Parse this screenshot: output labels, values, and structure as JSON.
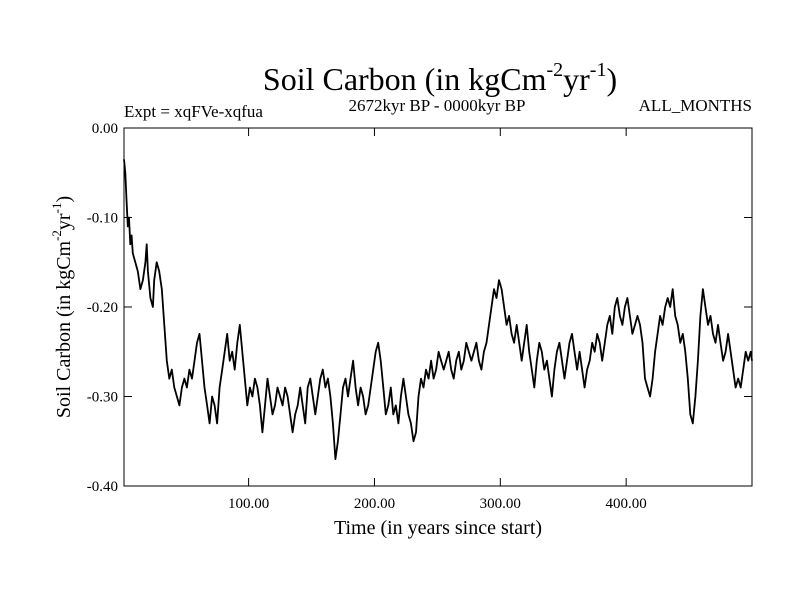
{
  "chart_data": {
    "type": "line",
    "title_main": "Soil Carbon (in kgCm",
    "title_sup1": "-2",
    "title_mid": "yr",
    "title_sup2": "-1",
    "title_end": ")",
    "subtitle_left": "Expt = xqFVe-xqfua",
    "subtitle_center": "2672kyr BP - 0000kyr BP",
    "subtitle_right": "ALL_MONTHS",
    "xlabel": "Time (in years since start)",
    "ylabel_main": "Soil Carbon (in kgCm",
    "ylabel_sup1": "-2",
    "ylabel_mid": "yr",
    "ylabel_sup2": "-1",
    "ylabel_end": ")",
    "xlim": [
      1,
      500
    ],
    "ylim": [
      -0.4,
      0.0
    ],
    "xticks": [
      {
        "value": 100,
        "label": "100.00"
      },
      {
        "value": 200,
        "label": "200.00"
      },
      {
        "value": 300,
        "label": "300.00"
      },
      {
        "value": 400,
        "label": "400.00"
      }
    ],
    "yticks": [
      {
        "value": 0.0,
        "label": "0.00"
      },
      {
        "value": -0.1,
        "label": "-0.10"
      },
      {
        "value": -0.2,
        "label": "-0.20"
      },
      {
        "value": -0.3,
        "label": "-0.30"
      },
      {
        "value": -0.4,
        "label": "-0.40"
      }
    ],
    "series": [
      {
        "name": "soil_carbon",
        "color": "#000000",
        "points": [
          [
            1,
            -0.035
          ],
          [
            2,
            -0.05
          ],
          [
            3,
            -0.08
          ],
          [
            4,
            -0.11
          ],
          [
            5,
            -0.1
          ],
          [
            6,
            -0.13
          ],
          [
            7,
            -0.12
          ],
          [
            8,
            -0.14
          ],
          [
            10,
            -0.15
          ],
          [
            12,
            -0.16
          ],
          [
            14,
            -0.18
          ],
          [
            16,
            -0.17
          ],
          [
            18,
            -0.15
          ],
          [
            19,
            -0.13
          ],
          [
            20,
            -0.16
          ],
          [
            22,
            -0.19
          ],
          [
            24,
            -0.2
          ],
          [
            25,
            -0.17
          ],
          [
            27,
            -0.15
          ],
          [
            29,
            -0.16
          ],
          [
            31,
            -0.18
          ],
          [
            33,
            -0.22
          ],
          [
            35,
            -0.26
          ],
          [
            37,
            -0.28
          ],
          [
            39,
            -0.27
          ],
          [
            41,
            -0.29
          ],
          [
            43,
            -0.3
          ],
          [
            45,
            -0.31
          ],
          [
            47,
            -0.29
          ],
          [
            49,
            -0.28
          ],
          [
            51,
            -0.29
          ],
          [
            53,
            -0.27
          ],
          [
            55,
            -0.28
          ],
          [
            57,
            -0.26
          ],
          [
            59,
            -0.24
          ],
          [
            61,
            -0.23
          ],
          [
            63,
            -0.26
          ],
          [
            65,
            -0.29
          ],
          [
            67,
            -0.31
          ],
          [
            69,
            -0.33
          ],
          [
            71,
            -0.3
          ],
          [
            73,
            -0.31
          ],
          [
            75,
            -0.33
          ],
          [
            77,
            -0.29
          ],
          [
            79,
            -0.27
          ],
          [
            81,
            -0.25
          ],
          [
            83,
            -0.23
          ],
          [
            85,
            -0.26
          ],
          [
            87,
            -0.25
          ],
          [
            89,
            -0.27
          ],
          [
            91,
            -0.24
          ],
          [
            93,
            -0.22
          ],
          [
            95,
            -0.25
          ],
          [
            97,
            -0.28
          ],
          [
            99,
            -0.31
          ],
          [
            101,
            -0.29
          ],
          [
            103,
            -0.3
          ],
          [
            105,
            -0.28
          ],
          [
            107,
            -0.29
          ],
          [
            109,
            -0.31
          ],
          [
            111,
            -0.34
          ],
          [
            113,
            -0.31
          ],
          [
            115,
            -0.28
          ],
          [
            117,
            -0.3
          ],
          [
            119,
            -0.32
          ],
          [
            121,
            -0.31
          ],
          [
            123,
            -0.29
          ],
          [
            125,
            -0.3
          ],
          [
            127,
            -0.31
          ],
          [
            129,
            -0.29
          ],
          [
            131,
            -0.3
          ],
          [
            133,
            -0.32
          ],
          [
            135,
            -0.34
          ],
          [
            137,
            -0.32
          ],
          [
            139,
            -0.31
          ],
          [
            141,
            -0.29
          ],
          [
            143,
            -0.31
          ],
          [
            145,
            -0.33
          ],
          [
            147,
            -0.29
          ],
          [
            149,
            -0.28
          ],
          [
            151,
            -0.3
          ],
          [
            153,
            -0.32
          ],
          [
            155,
            -0.3
          ],
          [
            157,
            -0.28
          ],
          [
            159,
            -0.27
          ],
          [
            161,
            -0.29
          ],
          [
            163,
            -0.28
          ],
          [
            165,
            -0.3
          ],
          [
            167,
            -0.33
          ],
          [
            169,
            -0.37
          ],
          [
            171,
            -0.35
          ],
          [
            173,
            -0.32
          ],
          [
            175,
            -0.29
          ],
          [
            177,
            -0.28
          ],
          [
            179,
            -0.3
          ],
          [
            181,
            -0.28
          ],
          [
            183,
            -0.26
          ],
          [
            185,
            -0.29
          ],
          [
            187,
            -0.31
          ],
          [
            189,
            -0.29
          ],
          [
            191,
            -0.3
          ],
          [
            193,
            -0.32
          ],
          [
            195,
            -0.31
          ],
          [
            197,
            -0.29
          ],
          [
            199,
            -0.27
          ],
          [
            201,
            -0.25
          ],
          [
            203,
            -0.24
          ],
          [
            205,
            -0.26
          ],
          [
            207,
            -0.29
          ],
          [
            209,
            -0.32
          ],
          [
            211,
            -0.31
          ],
          [
            213,
            -0.29
          ],
          [
            215,
            -0.32
          ],
          [
            217,
            -0.31
          ],
          [
            219,
            -0.33
          ],
          [
            221,
            -0.3
          ],
          [
            223,
            -0.28
          ],
          [
            225,
            -0.3
          ],
          [
            227,
            -0.32
          ],
          [
            229,
            -0.33
          ],
          [
            231,
            -0.35
          ],
          [
            233,
            -0.34
          ],
          [
            235,
            -0.3
          ],
          [
            237,
            -0.28
          ],
          [
            239,
            -0.29
          ],
          [
            241,
            -0.27
          ],
          [
            243,
            -0.28
          ],
          [
            245,
            -0.26
          ],
          [
            247,
            -0.28
          ],
          [
            249,
            -0.27
          ],
          [
            251,
            -0.25
          ],
          [
            253,
            -0.26
          ],
          [
            255,
            -0.27
          ],
          [
            257,
            -0.26
          ],
          [
            259,
            -0.25
          ],
          [
            261,
            -0.27
          ],
          [
            263,
            -0.28
          ],
          [
            265,
            -0.26
          ],
          [
            267,
            -0.25
          ],
          [
            269,
            -0.27
          ],
          [
            271,
            -0.26
          ],
          [
            273,
            -0.24
          ],
          [
            275,
            -0.25
          ],
          [
            277,
            -0.26
          ],
          [
            279,
            -0.25
          ],
          [
            281,
            -0.24
          ],
          [
            283,
            -0.26
          ],
          [
            285,
            -0.27
          ],
          [
            287,
            -0.25
          ],
          [
            289,
            -0.24
          ],
          [
            291,
            -0.22
          ],
          [
            293,
            -0.2
          ],
          [
            295,
            -0.18
          ],
          [
            297,
            -0.19
          ],
          [
            299,
            -0.17
          ],
          [
            301,
            -0.18
          ],
          [
            303,
            -0.2
          ],
          [
            305,
            -0.22
          ],
          [
            307,
            -0.21
          ],
          [
            309,
            -0.23
          ],
          [
            311,
            -0.24
          ],
          [
            313,
            -0.22
          ],
          [
            315,
            -0.24
          ],
          [
            317,
            -0.26
          ],
          [
            319,
            -0.24
          ],
          [
            321,
            -0.22
          ],
          [
            323,
            -0.25
          ],
          [
            325,
            -0.27
          ],
          [
            327,
            -0.29
          ],
          [
            329,
            -0.26
          ],
          [
            331,
            -0.24
          ],
          [
            333,
            -0.25
          ],
          [
            335,
            -0.27
          ],
          [
            337,
            -0.26
          ],
          [
            339,
            -0.28
          ],
          [
            341,
            -0.3
          ],
          [
            343,
            -0.27
          ],
          [
            345,
            -0.25
          ],
          [
            347,
            -0.24
          ],
          [
            349,
            -0.26
          ],
          [
            351,
            -0.28
          ],
          [
            353,
            -0.26
          ],
          [
            355,
            -0.24
          ],
          [
            357,
            -0.23
          ],
          [
            359,
            -0.25
          ],
          [
            361,
            -0.27
          ],
          [
            363,
            -0.25
          ],
          [
            365,
            -0.27
          ],
          [
            367,
            -0.29
          ],
          [
            369,
            -0.27
          ],
          [
            371,
            -0.26
          ],
          [
            373,
            -0.24
          ],
          [
            375,
            -0.25
          ],
          [
            377,
            -0.23
          ],
          [
            379,
            -0.24
          ],
          [
            381,
            -0.26
          ],
          [
            383,
            -0.24
          ],
          [
            385,
            -0.22
          ],
          [
            387,
            -0.21
          ],
          [
            389,
            -0.23
          ],
          [
            391,
            -0.2
          ],
          [
            393,
            -0.19
          ],
          [
            395,
            -0.21
          ],
          [
            397,
            -0.22
          ],
          [
            399,
            -0.2
          ],
          [
            401,
            -0.19
          ],
          [
            403,
            -0.21
          ],
          [
            405,
            -0.23
          ],
          [
            407,
            -0.22
          ],
          [
            409,
            -0.21
          ],
          [
            411,
            -0.22
          ],
          [
            413,
            -0.24
          ],
          [
            415,
            -0.28
          ],
          [
            417,
            -0.29
          ],
          [
            419,
            -0.3
          ],
          [
            421,
            -0.28
          ],
          [
            423,
            -0.25
          ],
          [
            425,
            -0.23
          ],
          [
            427,
            -0.21
          ],
          [
            429,
            -0.22
          ],
          [
            431,
            -0.2
          ],
          [
            433,
            -0.19
          ],
          [
            435,
            -0.2
          ],
          [
            437,
            -0.18
          ],
          [
            439,
            -0.21
          ],
          [
            441,
            -0.22
          ],
          [
            443,
            -0.24
          ],
          [
            445,
            -0.23
          ],
          [
            447,
            -0.25
          ],
          [
            449,
            -0.28
          ],
          [
            451,
            -0.32
          ],
          [
            453,
            -0.33
          ],
          [
            455,
            -0.3
          ],
          [
            457,
            -0.26
          ],
          [
            459,
            -0.21
          ],
          [
            461,
            -0.18
          ],
          [
            463,
            -0.2
          ],
          [
            465,
            -0.22
          ],
          [
            467,
            -0.21
          ],
          [
            469,
            -0.23
          ],
          [
            471,
            -0.24
          ],
          [
            473,
            -0.22
          ],
          [
            475,
            -0.24
          ],
          [
            477,
            -0.26
          ],
          [
            479,
            -0.25
          ],
          [
            481,
            -0.23
          ],
          [
            483,
            -0.25
          ],
          [
            485,
            -0.27
          ],
          [
            487,
            -0.29
          ],
          [
            489,
            -0.28
          ],
          [
            491,
            -0.29
          ],
          [
            493,
            -0.27
          ],
          [
            495,
            -0.25
          ],
          [
            497,
            -0.26
          ],
          [
            499,
            -0.25
          ],
          [
            500,
            -0.26
          ]
        ]
      }
    ]
  }
}
